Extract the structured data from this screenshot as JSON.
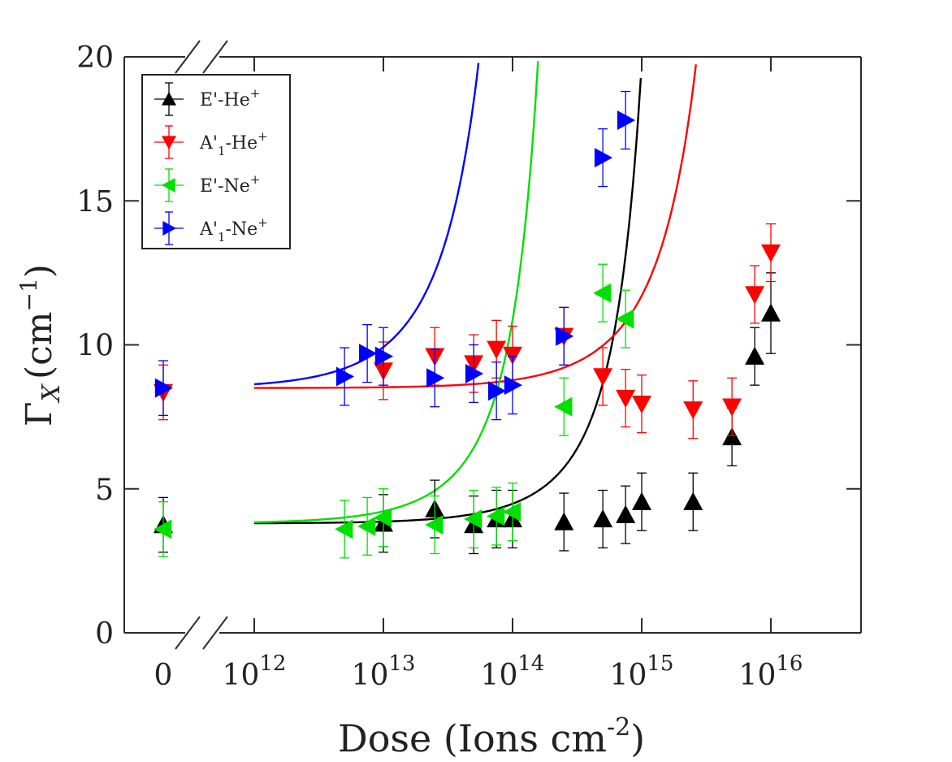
{
  "chart_data": {
    "type": "scatter",
    "xlabel": "Dose (Ions cm",
    "xlabel_sup": "-2",
    "xlabel_end": ")",
    "ylabel": "Γ",
    "ylabel_sub": "X",
    "ylabel_unit": "(cm",
    "ylabel_unit_sup": "−1",
    "ylabel_unit_end": ")",
    "ylim": [
      0,
      20
    ],
    "x_scale": "log with axis break (0 shown separately)",
    "xlim_log": [
      1000000000000.0,
      4e+16
    ],
    "y_ticks": [
      "0",
      "5",
      "10",
      "15",
      "20"
    ],
    "x_ticks": [
      {
        "base": "0",
        "exp": ""
      },
      {
        "base": "10",
        "exp": "12"
      },
      {
        "base": "10",
        "exp": "13"
      },
      {
        "base": "10",
        "exp": "14"
      },
      {
        "base": "10",
        "exp": "15"
      },
      {
        "base": "10",
        "exp": "16"
      }
    ],
    "legend_position": "top-left",
    "series": [
      {
        "name": "E'-He",
        "sup": "+",
        "sub": "",
        "name_end": "",
        "color": "#000000",
        "marker": "triangle-up",
        "points": [
          {
            "x": 0,
            "y": 3.75,
            "err": 0.95
          },
          {
            "x": 10000000000000.0,
            "y": 3.8,
            "err": 1.0
          },
          {
            "x": 25000000000000.0,
            "y": 4.3,
            "err": 1.0
          },
          {
            "x": 50000000000000.0,
            "y": 3.75,
            "err": 1.0
          },
          {
            "x": 75000000000000.0,
            "y": 3.95,
            "err": 1.0
          },
          {
            "x": 100000000000000.0,
            "y": 3.95,
            "err": 1.0
          },
          {
            "x": 250000000000000.0,
            "y": 3.85,
            "err": 1.0
          },
          {
            "x": 500000000000000.0,
            "y": 3.95,
            "err": 1.0
          },
          {
            "x": 750000000000000.0,
            "y": 4.1,
            "err": 1.0
          },
          {
            "x": 1000000000000000.0,
            "y": 4.55,
            "err": 1.0
          },
          {
            "x": 2500000000000000.0,
            "y": 4.55,
            "err": 1.0
          },
          {
            "x": 5000000000000000.0,
            "y": 6.8,
            "err": 1.0
          },
          {
            "x": 7500000000000000.0,
            "y": 9.6,
            "err": 1.0
          },
          {
            "x": 1e+16,
            "y": 11.1,
            "err": 1.4
          }
        ],
        "fit": {
          "base": 3.8,
          "k": 1.65e-15,
          "xmax": 1.3e+16
        }
      },
      {
        "name": "A'",
        "sup": "",
        "sub": "1",
        "name_end": "-He",
        "name_end_sup": "+",
        "color": "#ff0000",
        "marker": "triangle-down",
        "points": [
          {
            "x": 0,
            "y": 8.35,
            "err": 0.95
          },
          {
            "x": 10000000000000.0,
            "y": 9.1,
            "err": 1.0
          },
          {
            "x": 25000000000000.0,
            "y": 9.6,
            "err": 1.0
          },
          {
            "x": 50000000000000.0,
            "y": 9.35,
            "err": 1.0
          },
          {
            "x": 75000000000000.0,
            "y": 9.85,
            "err": 1.0
          },
          {
            "x": 100000000000000.0,
            "y": 9.65,
            "err": 1.0
          },
          {
            "x": 250000000000000.0,
            "y": 10.3,
            "err": 1.0
          },
          {
            "x": 500000000000000.0,
            "y": 8.9,
            "err": 1.0
          },
          {
            "x": 750000000000000.0,
            "y": 8.15,
            "err": 1.0
          },
          {
            "x": 1000000000000000.0,
            "y": 7.95,
            "err": 1.0
          },
          {
            "x": 2500000000000000.0,
            "y": 7.75,
            "err": 1.0
          },
          {
            "x": 5000000000000000.0,
            "y": 7.85,
            "err": 1.0
          },
          {
            "x": 7500000000000000.0,
            "y": 11.75,
            "err": 1.0
          },
          {
            "x": 1e+16,
            "y": 13.2,
            "err": 1.0
          }
        ],
        "fit": {
          "base": 8.5,
          "k": 3.2e-16,
          "xmax": 1.18e+16
        }
      },
      {
        "name": "E'-Ne",
        "sup": "+",
        "sub": "",
        "name_end": "",
        "color": "#00e000",
        "marker": "triangle-left",
        "points": [
          {
            "x": 0,
            "y": 3.6,
            "err": 0.95
          },
          {
            "x": 5000000000000.0,
            "y": 3.6,
            "err": 1.0
          },
          {
            "x": 7500000000000.0,
            "y": 3.7,
            "err": 1.0
          },
          {
            "x": 10000000000000.0,
            "y": 4.0,
            "err": 1.0
          },
          {
            "x": 25000000000000.0,
            "y": 3.75,
            "err": 1.0
          },
          {
            "x": 50000000000000.0,
            "y": 3.95,
            "err": 1.0
          },
          {
            "x": 75000000000000.0,
            "y": 4.05,
            "err": 1.0
          },
          {
            "x": 100000000000000.0,
            "y": 4.2,
            "err": 1.0
          },
          {
            "x": 250000000000000.0,
            "y": 7.85,
            "err": 1.0
          },
          {
            "x": 500000000000000.0,
            "y": 11.8,
            "err": 1.0
          },
          {
            "x": 750000000000000.0,
            "y": 10.9,
            "err": 1.0
          }
        ],
        "fit": {
          "base": 3.8,
          "k": 1.05e-14,
          "xmax": 1450000000000000.0
        }
      },
      {
        "name": "A'",
        "sup": "",
        "sub": "1",
        "name_end": "-Ne",
        "name_end_sup": "+",
        "color": "#0000ff",
        "marker": "triangle-right",
        "points": [
          {
            "x": 0,
            "y": 8.5,
            "err": 0.95
          },
          {
            "x": 5000000000000.0,
            "y": 8.9,
            "err": 1.0
          },
          {
            "x": 7500000000000.0,
            "y": 9.7,
            "err": 1.0
          },
          {
            "x": 10000000000000.0,
            "y": 9.6,
            "err": 1.0
          },
          {
            "x": 25000000000000.0,
            "y": 8.85,
            "err": 1.0
          },
          {
            "x": 50000000000000.0,
            "y": 9.0,
            "err": 1.0
          },
          {
            "x": 75000000000000.0,
            "y": 8.4,
            "err": 1.0
          },
          {
            "x": 100000000000000.0,
            "y": 8.6,
            "err": 1.0
          },
          {
            "x": 250000000000000.0,
            "y": 10.3,
            "err": 1.0
          },
          {
            "x": 500000000000000.0,
            "y": 16.5,
            "err": 1.0
          },
          {
            "x": 750000000000000.0,
            "y": 17.8,
            "err": 1.0
          }
        ],
        "fit": {
          "base": 8.5,
          "k": 1.55e-14,
          "xmax": 930000000000000.0
        }
      }
    ]
  }
}
